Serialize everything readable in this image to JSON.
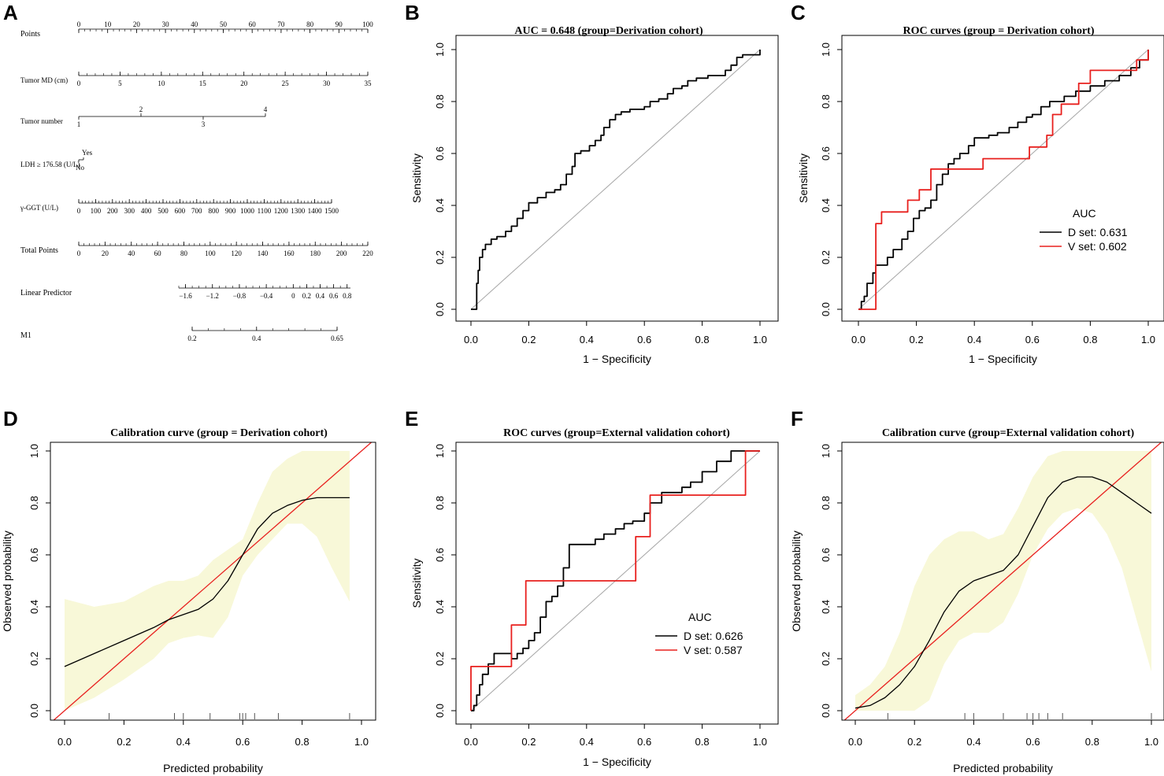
{
  "panel_labels": [
    "A",
    "B",
    "C",
    "D",
    "E",
    "F"
  ],
  "nomogram": {
    "rows": [
      {
        "label": "Points",
        "ticks": [
          "0",
          "10",
          "20",
          "30",
          "40",
          "50",
          "60",
          "70",
          "80",
          "90",
          "100"
        ]
      },
      {
        "label": "Tumor MD (cm)",
        "ticks": [
          "0",
          "5",
          "10",
          "15",
          "20",
          "25",
          "30",
          "35"
        ]
      },
      {
        "label": "Tumor number",
        "ticks_above": [
          "2",
          "4"
        ],
        "ticks_below": [
          "1",
          "3"
        ]
      },
      {
        "label": "LDH ≥ 176.58 (U/L)",
        "ticks_above": [
          "Yes"
        ],
        "ticks_below": [
          "No"
        ]
      },
      {
        "label": "γ-GGT (U/L)",
        "ticks": [
          "0",
          "100",
          "200",
          "300",
          "400",
          "500",
          "600",
          "700",
          "800",
          "900",
          "1000",
          "1100",
          "1200",
          "1300",
          "1400",
          "1500"
        ]
      },
      {
        "label": "Total Points",
        "ticks": [
          "0",
          "20",
          "40",
          "60",
          "80",
          "100",
          "120",
          "140",
          "160",
          "180",
          "200",
          "220"
        ]
      },
      {
        "label": "Linear Predictor",
        "ticks": [
          "−1.6",
          "−1.2",
          "−0.8",
          "−0.4",
          "0",
          "0.2",
          "0.4",
          "0.6",
          "0.8"
        ]
      },
      {
        "label": "M1",
        "ticks": [
          "0.2",
          "0.4",
          "0.65"
        ]
      }
    ]
  },
  "axis_labels": {
    "roc_x": "1 − Specificity",
    "roc_y": "Sensitivity",
    "cal_x": "Predicted probability",
    "cal_y": "Observed probability"
  },
  "tick_labels": [
    "0.0",
    "0.2",
    "0.4",
    "0.6",
    "0.8",
    "1.0"
  ],
  "legend_title": "AUC",
  "colors": {
    "d_set": "#000000",
    "v_set": "#e8201e",
    "band": "#f8f8d8",
    "diag": "#a6a6a6"
  },
  "chart_data": [
    {
      "id": "B",
      "type": "line",
      "title": "AUC = 0.648  (group=Derivation cohort)",
      "xlabel": "1 − Specificity",
      "ylabel": "Sensitivity",
      "xlim": [
        0,
        1
      ],
      "ylim": [
        0,
        1
      ],
      "series": [
        {
          "name": "D set",
          "color": "#000000",
          "x": [
            0,
            0.02,
            0.02,
            0.025,
            0.03,
            0.04,
            0.05,
            0.07,
            0.09,
            0.12,
            0.14,
            0.16,
            0.18,
            0.2,
            0.23,
            0.26,
            0.29,
            0.31,
            0.33,
            0.35,
            0.36,
            0.38,
            0.41,
            0.43,
            0.45,
            0.46,
            0.48,
            0.5,
            0.52,
            0.55,
            0.57,
            0.6,
            0.62,
            0.65,
            0.68,
            0.7,
            0.73,
            0.75,
            0.78,
            0.8,
            0.82,
            0.85,
            0.88,
            0.9,
            0.92,
            0.94,
            0.96,
            1.0
          ],
          "y": [
            0,
            0.01,
            0.1,
            0.15,
            0.2,
            0.23,
            0.25,
            0.27,
            0.28,
            0.3,
            0.32,
            0.35,
            0.38,
            0.41,
            0.43,
            0.45,
            0.46,
            0.48,
            0.52,
            0.55,
            0.6,
            0.61,
            0.63,
            0.65,
            0.67,
            0.7,
            0.73,
            0.75,
            0.76,
            0.77,
            0.77,
            0.78,
            0.8,
            0.81,
            0.83,
            0.85,
            0.86,
            0.88,
            0.89,
            0.89,
            0.9,
            0.9,
            0.92,
            0.94,
            0.97,
            0.98,
            0.98,
            1.0
          ]
        }
      ]
    },
    {
      "id": "C",
      "type": "line",
      "title": "ROC curves (group = Derivation cohort)",
      "xlabel": "1 − Specificity",
      "ylabel": "Sensitivity",
      "xlim": [
        0,
        1
      ],
      "ylim": [
        0,
        1
      ],
      "legend": {
        "title": "AUC",
        "entries": [
          "D set: 0.631",
          "V set: 0.602"
        ],
        "placement": "center-right"
      },
      "series": [
        {
          "name": "D set: 0.631",
          "color": "#000000",
          "x": [
            0,
            0.01,
            0.02,
            0.03,
            0.05,
            0.06,
            0.08,
            0.1,
            0.12,
            0.14,
            0.15,
            0.17,
            0.19,
            0.21,
            0.23,
            0.25,
            0.27,
            0.29,
            0.31,
            0.33,
            0.35,
            0.38,
            0.4,
            0.42,
            0.45,
            0.48,
            0.52,
            0.55,
            0.58,
            0.6,
            0.63,
            0.66,
            0.68,
            0.71,
            0.75,
            0.8,
            0.85,
            0.9,
            0.94,
            0.97,
            1.0
          ],
          "y": [
            0,
            0.03,
            0.05,
            0.1,
            0.14,
            0.17,
            0.17,
            0.2,
            0.23,
            0.23,
            0.27,
            0.3,
            0.35,
            0.38,
            0.39,
            0.42,
            0.48,
            0.52,
            0.56,
            0.58,
            0.6,
            0.63,
            0.66,
            0.66,
            0.67,
            0.68,
            0.7,
            0.72,
            0.74,
            0.75,
            0.78,
            0.8,
            0.8,
            0.82,
            0.84,
            0.86,
            0.88,
            0.9,
            0.93,
            0.96,
            1.0
          ]
        },
        {
          "name": "V set: 0.602",
          "color": "#e8201e",
          "x": [
            0,
            0.06,
            0.06,
            0.08,
            0.08,
            0.17,
            0.17,
            0.21,
            0.21,
            0.25,
            0.25,
            0.43,
            0.43,
            0.59,
            0.59,
            0.65,
            0.65,
            0.67,
            0.67,
            0.7,
            0.7,
            0.76,
            0.76,
            0.8,
            0.8,
            0.96,
            0.96,
            1.0
          ],
          "y": [
            0,
            0,
            0.33,
            0.33,
            0.375,
            0.375,
            0.42,
            0.42,
            0.46,
            0.46,
            0.54,
            0.54,
            0.58,
            0.58,
            0.625,
            0.625,
            0.67,
            0.67,
            0.75,
            0.75,
            0.79,
            0.79,
            0.87,
            0.87,
            0.92,
            0.92,
            0.96,
            1.0
          ]
        }
      ]
    },
    {
      "id": "D",
      "type": "area",
      "title": "Calibration curve (group = Derivation cohort)",
      "xlabel": "Predicted probability",
      "ylabel": "Observed probability",
      "xlim": [
        0,
        1
      ],
      "ylim": [
        0,
        1
      ],
      "band": {
        "x": [
          0,
          0.1,
          0.2,
          0.3,
          0.35,
          0.4,
          0.45,
          0.5,
          0.55,
          0.6,
          0.65,
          0.7,
          0.75,
          0.8,
          0.85,
          0.9,
          0.96
        ],
        "upper": [
          0.43,
          0.4,
          0.42,
          0.48,
          0.5,
          0.5,
          0.52,
          0.58,
          0.62,
          0.66,
          0.8,
          0.92,
          0.97,
          1.0,
          1.0,
          1.0,
          1.0
        ],
        "lower": [
          0.0,
          0.05,
          0.12,
          0.2,
          0.26,
          0.28,
          0.29,
          0.28,
          0.36,
          0.52,
          0.6,
          0.66,
          0.72,
          0.72,
          0.67,
          0.55,
          0.42
        ]
      },
      "series": [
        {
          "name": "fit",
          "color": "#000000",
          "x": [
            0,
            0.1,
            0.2,
            0.3,
            0.35,
            0.4,
            0.45,
            0.5,
            0.55,
            0.6,
            0.65,
            0.7,
            0.75,
            0.8,
            0.85,
            0.9,
            0.96
          ],
          "y": [
            0.17,
            0.22,
            0.27,
            0.32,
            0.35,
            0.37,
            0.39,
            0.43,
            0.5,
            0.6,
            0.7,
            0.76,
            0.79,
            0.81,
            0.82,
            0.82,
            0.82
          ]
        }
      ],
      "rug": [
        0.15,
        0.37,
        0.4,
        0.49,
        0.59,
        0.6,
        0.61,
        0.64,
        0.72,
        0.96
      ]
    },
    {
      "id": "E",
      "type": "line",
      "title": "ROC curves (group=External validation cohort)",
      "xlabel": "1 − Specificity",
      "ylabel": "Sensitivity",
      "xlim": [
        0,
        1
      ],
      "ylim": [
        0,
        1
      ],
      "legend": {
        "title": "AUC",
        "entries": [
          "D set: 0.626",
          "V set: 0.587"
        ],
        "placement": "bottom-right"
      },
      "series": [
        {
          "name": "D set: 0.626",
          "color": "#000000",
          "x": [
            0,
            0.01,
            0.02,
            0.03,
            0.04,
            0.06,
            0.08,
            0.1,
            0.12,
            0.14,
            0.16,
            0.18,
            0.2,
            0.22,
            0.24,
            0.26,
            0.28,
            0.3,
            0.32,
            0.34,
            0.36,
            0.38,
            0.4,
            0.43,
            0.46,
            0.5,
            0.53,
            0.56,
            0.6,
            0.62,
            0.66,
            0.7,
            0.73,
            0.76,
            0.8,
            0.85,
            0.9,
            0.95,
            1.0
          ],
          "y": [
            0,
            0.02,
            0.06,
            0.1,
            0.14,
            0.18,
            0.22,
            0.22,
            0.22,
            0.2,
            0.22,
            0.24,
            0.27,
            0.3,
            0.36,
            0.42,
            0.44,
            0.48,
            0.55,
            0.64,
            0.64,
            0.64,
            0.64,
            0.66,
            0.68,
            0.7,
            0.72,
            0.73,
            0.76,
            0.8,
            0.84,
            0.84,
            0.86,
            0.88,
            0.92,
            0.96,
            1.0,
            1.0,
            1.0
          ]
        },
        {
          "name": "V set: 0.587",
          "color": "#e8201e",
          "x": [
            0,
            0,
            0.14,
            0.14,
            0.19,
            0.19,
            0.57,
            0.57,
            0.62,
            0.62,
            0.95,
            0.95,
            1.0
          ],
          "y": [
            0,
            0.17,
            0.17,
            0.33,
            0.33,
            0.5,
            0.5,
            0.67,
            0.67,
            0.83,
            0.83,
            1.0,
            1.0
          ]
        }
      ]
    },
    {
      "id": "F",
      "type": "area",
      "title": "Calibration curve (group=External validation cohort)",
      "xlabel": "Predicted probability",
      "ylabel": "Observed probability",
      "xlim": [
        0,
        1
      ],
      "ylim": [
        0,
        1
      ],
      "band": {
        "x": [
          0,
          0.05,
          0.1,
          0.15,
          0.2,
          0.25,
          0.3,
          0.35,
          0.4,
          0.45,
          0.5,
          0.55,
          0.6,
          0.65,
          0.7,
          0.75,
          0.8,
          0.85,
          0.9,
          0.95,
          1.0
        ],
        "upper": [
          0.06,
          0.1,
          0.17,
          0.3,
          0.48,
          0.6,
          0.66,
          0.69,
          0.69,
          0.66,
          0.68,
          0.78,
          0.9,
          0.98,
          1.0,
          1.0,
          1.0,
          1.0,
          1.0,
          1.0,
          1.0
        ],
        "lower": [
          0.0,
          0.0,
          0.0,
          0.0,
          0.0,
          0.04,
          0.18,
          0.27,
          0.3,
          0.3,
          0.34,
          0.45,
          0.6,
          0.7,
          0.76,
          0.78,
          0.76,
          0.68,
          0.55,
          0.35,
          0.15
        ]
      },
      "series": [
        {
          "name": "fit",
          "color": "#000000",
          "x": [
            0,
            0.05,
            0.1,
            0.15,
            0.2,
            0.25,
            0.3,
            0.35,
            0.4,
            0.45,
            0.5,
            0.55,
            0.6,
            0.65,
            0.7,
            0.75,
            0.8,
            0.85,
            0.9,
            0.95,
            1.0
          ],
          "y": [
            0.01,
            0.02,
            0.05,
            0.1,
            0.17,
            0.27,
            0.38,
            0.46,
            0.5,
            0.52,
            0.54,
            0.6,
            0.71,
            0.82,
            0.88,
            0.9,
            0.9,
            0.88,
            0.84,
            0.8,
            0.76
          ]
        }
      ],
      "rug": [
        0.11,
        0.37,
        0.4,
        0.5,
        0.58,
        0.6,
        0.62,
        0.65,
        0.7,
        1.0
      ]
    }
  ]
}
